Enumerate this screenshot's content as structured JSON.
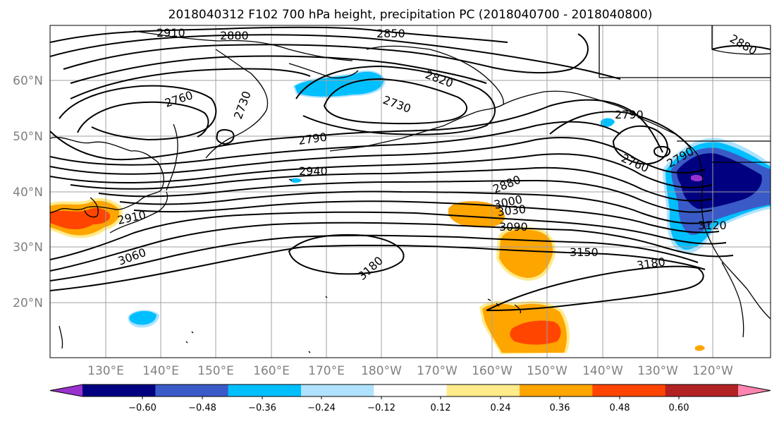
{
  "title": "2018040312 F102 700 hPa height, precipitation PC (2018040700 - 2018040800)",
  "latitude_labels": [
    "60°N",
    "50°N",
    "40°N",
    "30°N",
    "20°N"
  ],
  "longitude_labels": [
    "130°E",
    "140°E",
    "150°E",
    "160°E",
    "170°E",
    "180°W",
    "170°W",
    "160°W",
    "150°W",
    "140°W",
    "130°W",
    "120°W"
  ],
  "contour_labels": [
    "2910",
    "2880",
    "2850",
    "2820",
    "2880",
    "2760",
    "2730",
    "2730",
    "2790",
    "2790",
    "2760",
    "2940",
    "2880",
    "3000",
    "3030",
    "3090",
    "2910",
    "3060",
    "3180",
    "3150",
    "3180",
    "3120",
    "2790"
  ],
  "colorbar": {
    "ticks": [
      "−0.60",
      "−0.48",
      "−0.36",
      "−0.24",
      "−0.12",
      "0.12",
      "0.24",
      "0.36",
      "0.48",
      "0.60"
    ],
    "colors": [
      "#9932cc",
      "#000080",
      "#3a5bc7",
      "#00bfff",
      "#b0e2ff",
      "#ffffff",
      "#ffeb8a",
      "#ffa500",
      "#ff4500",
      "#b22222",
      "#ff85b0"
    ]
  },
  "colors": {
    "land_line": "#000000",
    "grid": "#a0a0a0",
    "contour": "#000000",
    "orange": "#ffa500",
    "red": "#ff4500",
    "light_yellow": "#ffeb8a",
    "light_blue": "#b0e2ff",
    "sky_blue": "#00bfff",
    "royal_blue": "#3a5bc7",
    "navy": "#000080",
    "purple": "#9932cc"
  }
}
